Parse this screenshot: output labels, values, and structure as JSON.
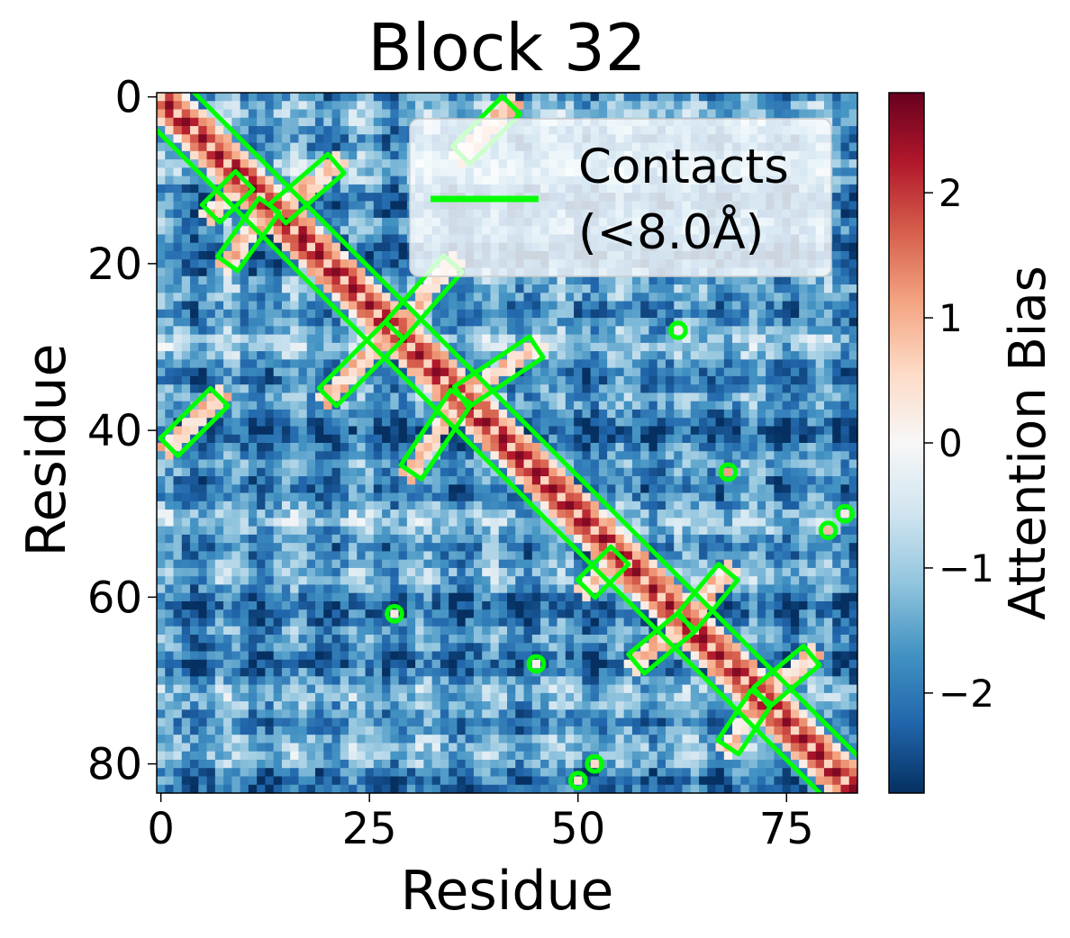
{
  "chart_data": {
    "type": "heatmap",
    "title": "Block 32",
    "xlabel": "Residue",
    "ylabel": "Residue",
    "n_residues": 84,
    "xlim": [
      0,
      83
    ],
    "ylim": [
      0,
      83
    ],
    "y_inverted": true,
    "x_ticks": [
      0,
      25,
      50,
      75
    ],
    "y_ticks": [
      0,
      20,
      40,
      60,
      80
    ],
    "colormap": "RdBu_r",
    "colorbar": {
      "label": "Attention Bias",
      "range": [
        -2.8,
        2.8
      ],
      "ticks": [
        -2,
        -1,
        0,
        1,
        2
      ],
      "tick_labels": [
        "−2",
        "−1",
        "0",
        "1",
        "2"
      ]
    },
    "legend": {
      "placement": "top-right",
      "entries": [
        {
          "label_line1": "Contacts",
          "label_line2": "(<8.0Å)",
          "color": "#00ff00"
        }
      ]
    },
    "contact_threshold_angstrom": 8.0,
    "contact_color": "#00ff00",
    "contact_regions": [
      {
        "name": "diagonal band",
        "kind": "band",
        "offset": 3
      },
      {
        "name": "helix/sheet arm 1",
        "kind": "stripe",
        "from": [
          10,
          10
        ],
        "to": [
          6,
          14
        ]
      },
      {
        "name": "arm 2",
        "kind": "stripe",
        "from": [
          13,
          13
        ],
        "to": [
          8,
          20
        ]
      },
      {
        "name": "arm 3",
        "kind": "stripe",
        "from": [
          14,
          14
        ],
        "to": [
          21,
          8
        ]
      },
      {
        "name": "arm 4",
        "kind": "stripe",
        "from": [
          28,
          28
        ],
        "to": [
          35,
          20
        ]
      },
      {
        "name": "arm 5",
        "kind": "stripe",
        "from": [
          28,
          28
        ],
        "to": [
          20,
          36
        ]
      },
      {
        "name": "arm 6",
        "kind": "stripe",
        "from": [
          36,
          36
        ],
        "to": [
          45,
          30
        ]
      },
      {
        "name": "arm 7",
        "kind": "stripe",
        "from": [
          36,
          36
        ],
        "to": [
          30,
          45
        ]
      },
      {
        "name": "arm 8",
        "kind": "stripe",
        "from": [
          55,
          55
        ],
        "to": [
          51,
          59
        ]
      },
      {
        "name": "arm 9",
        "kind": "stripe",
        "from": [
          63,
          63
        ],
        "to": [
          68,
          57
        ]
      },
      {
        "name": "arm 10",
        "kind": "stripe",
        "from": [
          63,
          63
        ],
        "to": [
          57,
          68
        ]
      },
      {
        "name": "arm 11",
        "kind": "stripe",
        "from": [
          72,
          72
        ],
        "to": [
          78,
          67
        ]
      },
      {
        "name": "arm 12",
        "kind": "stripe",
        "from": [
          72,
          72
        ],
        "to": [
          68,
          78
        ]
      },
      {
        "name": "long-range 1",
        "kind": "stripe",
        "from": [
          42,
          1
        ],
        "to": [
          36,
          7
        ]
      },
      {
        "name": "long-range 2",
        "kind": "stripe",
        "from": [
          1,
          42
        ],
        "to": [
          7,
          36
        ]
      },
      {
        "name": "spot A",
        "kind": "spot",
        "at": [
          62,
          28
        ]
      },
      {
        "name": "spot B",
        "kind": "spot",
        "at": [
          28,
          62
        ]
      },
      {
        "name": "spot C",
        "kind": "spot",
        "at": [
          68,
          45
        ]
      },
      {
        "name": "spot D",
        "kind": "spot",
        "at": [
          45,
          68
        ]
      },
      {
        "name": "spot E",
        "kind": "spot",
        "at": [
          80,
          52
        ]
      },
      {
        "name": "spot F",
        "kind": "spot",
        "at": [
          52,
          80
        ]
      },
      {
        "name": "spot G",
        "kind": "spot",
        "at": [
          82,
          50
        ]
      },
      {
        "name": "spot H",
        "kind": "spot",
        "at": [
          50,
          82
        ]
      }
    ]
  }
}
